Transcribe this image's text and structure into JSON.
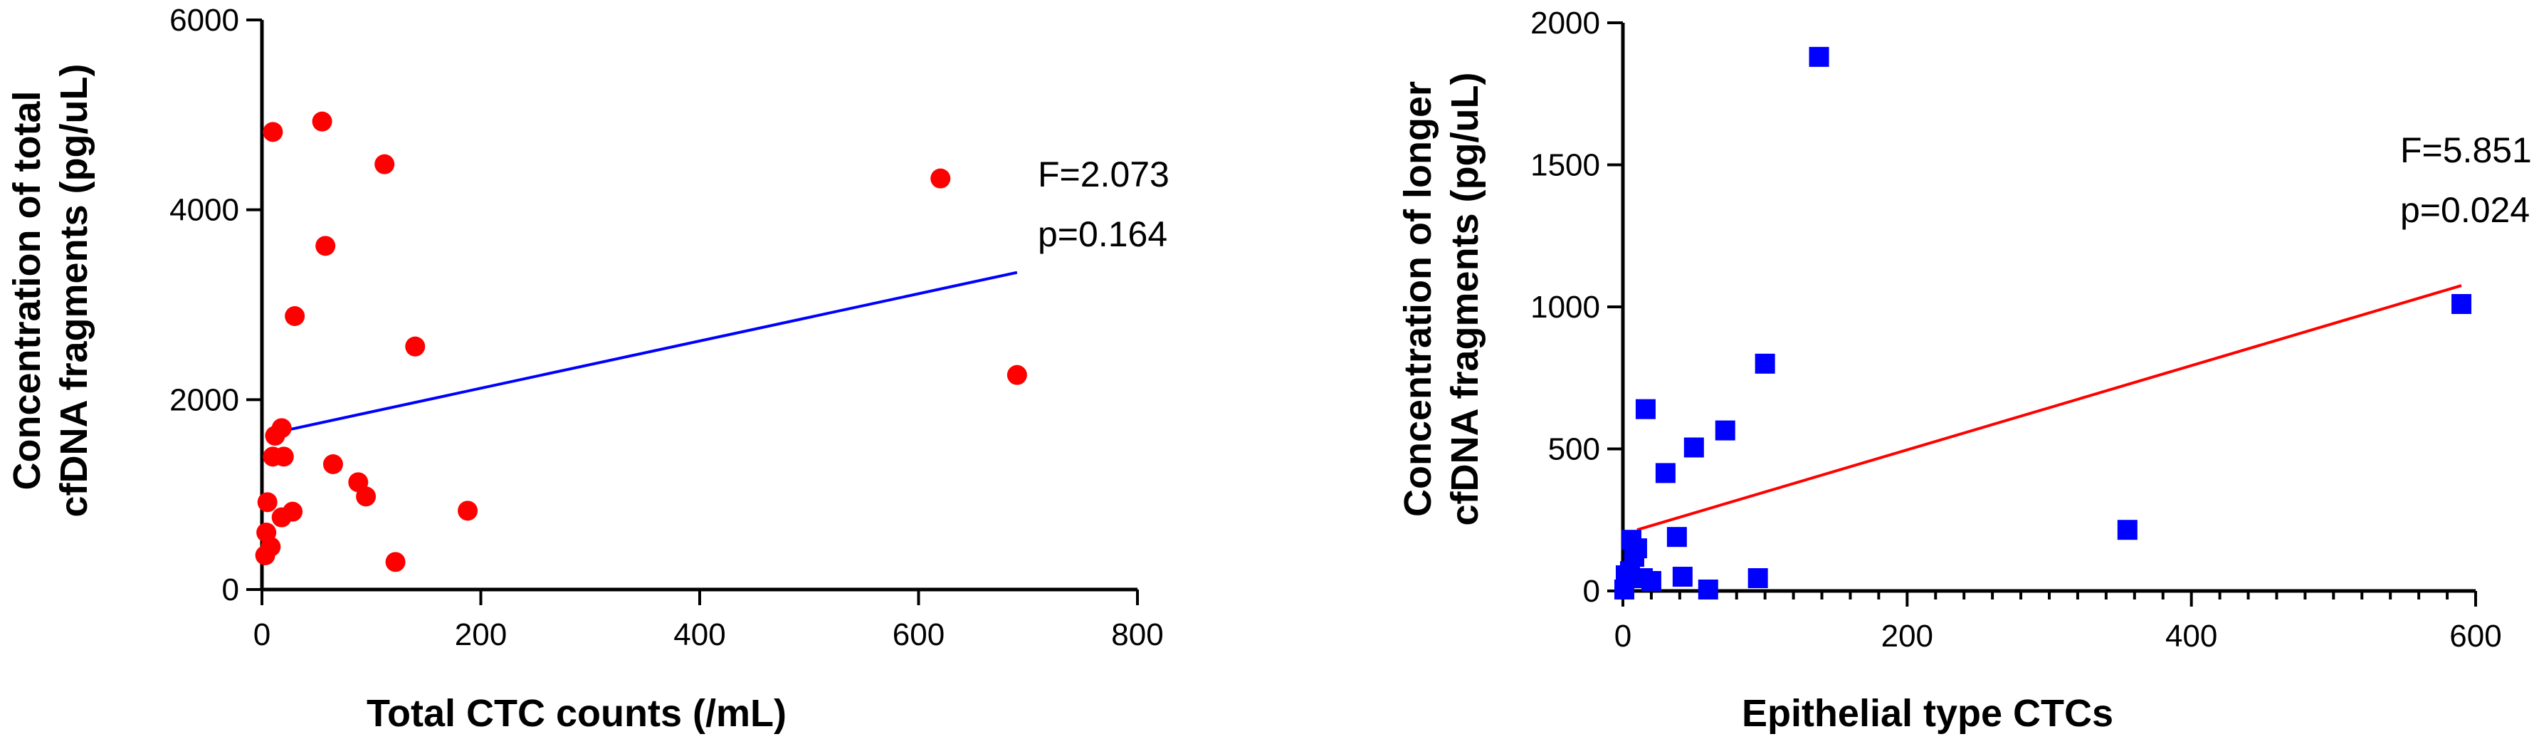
{
  "chart_data": [
    {
      "type": "scatter",
      "xlabel": "Total CTC counts (/mL)",
      "ylabel_lines": [
        "Concentration of total",
        "cfDNA fragments (pg/uL)"
      ],
      "xlim": [
        0,
        800
      ],
      "ylim": [
        0,
        6000
      ],
      "xticks": [
        0,
        200,
        400,
        600,
        800
      ],
      "yticks": [
        0,
        2000,
        4000,
        6000
      ],
      "xtick_labels": [
        "0",
        "200",
        "400",
        "600",
        "800"
      ],
      "ytick_labels": [
        "0",
        "2000",
        "4000",
        "6000"
      ],
      "marker": "circle",
      "color": "#ff0000",
      "line_color": "#0000ff",
      "points": [
        {
          "x": 10,
          "y": 4820
        },
        {
          "x": 55,
          "y": 4930
        },
        {
          "x": 112,
          "y": 4480
        },
        {
          "x": 58,
          "y": 3620
        },
        {
          "x": 30,
          "y": 2880
        },
        {
          "x": 140,
          "y": 2560
        },
        {
          "x": 620,
          "y": 4330
        },
        {
          "x": 690,
          "y": 2260
        },
        {
          "x": 18,
          "y": 1700
        },
        {
          "x": 12,
          "y": 1620
        },
        {
          "x": 10,
          "y": 1400
        },
        {
          "x": 20,
          "y": 1400
        },
        {
          "x": 65,
          "y": 1320
        },
        {
          "x": 88,
          "y": 1130
        },
        {
          "x": 95,
          "y": 980
        },
        {
          "x": 5,
          "y": 920
        },
        {
          "x": 28,
          "y": 820
        },
        {
          "x": 188,
          "y": 830
        },
        {
          "x": 18,
          "y": 760
        },
        {
          "x": 4,
          "y": 600
        },
        {
          "x": 8,
          "y": 450
        },
        {
          "x": 3,
          "y": 360
        },
        {
          "x": 122,
          "y": 290
        }
      ],
      "fit": {
        "x1": 15,
        "y1": 1660,
        "x2": 690,
        "y2": 3340
      },
      "stats": [
        "F=2.073",
        "p=0.164"
      ]
    },
    {
      "type": "scatter",
      "xlabel": "Epithelial type CTCs",
      "ylabel_lines": [
        "Concentration of longer",
        "cfDNA fragments (pg/uL)"
      ],
      "xlim": [
        0,
        600
      ],
      "ylim": [
        0,
        2000
      ],
      "xticks": [
        0,
        200,
        400,
        600
      ],
      "yticks": [
        0,
        500,
        1000,
        1500,
        2000
      ],
      "xtick_labels": [
        "0",
        "200",
        "400",
        "600"
      ],
      "ytick_labels": [
        "0",
        "500",
        "1000",
        "1500",
        "2000"
      ],
      "x_minor_step": 20,
      "marker": "square",
      "color": "#0000ff",
      "line_color": "#ff0000",
      "points": [
        {
          "x": 138,
          "y": 1880
        },
        {
          "x": 590,
          "y": 1010
        },
        {
          "x": 100,
          "y": 800
        },
        {
          "x": 16,
          "y": 640
        },
        {
          "x": 72,
          "y": 565
        },
        {
          "x": 50,
          "y": 505
        },
        {
          "x": 30,
          "y": 415
        },
        {
          "x": 355,
          "y": 215
        },
        {
          "x": 38,
          "y": 190
        },
        {
          "x": 6,
          "y": 180
        },
        {
          "x": 10,
          "y": 150
        },
        {
          "x": 8,
          "y": 120
        },
        {
          "x": 2,
          "y": 55
        },
        {
          "x": 5,
          "y": 70
        },
        {
          "x": 14,
          "y": 45
        },
        {
          "x": 20,
          "y": 35
        },
        {
          "x": 42,
          "y": 50
        },
        {
          "x": 95,
          "y": 45
        },
        {
          "x": 60,
          "y": 5
        },
        {
          "x": 1,
          "y": 5
        }
      ],
      "fit": {
        "x1": 10,
        "y1": 215,
        "x2": 590,
        "y2": 1075
      },
      "stats": [
        "F=5.851",
        "p=0.024"
      ]
    }
  ]
}
